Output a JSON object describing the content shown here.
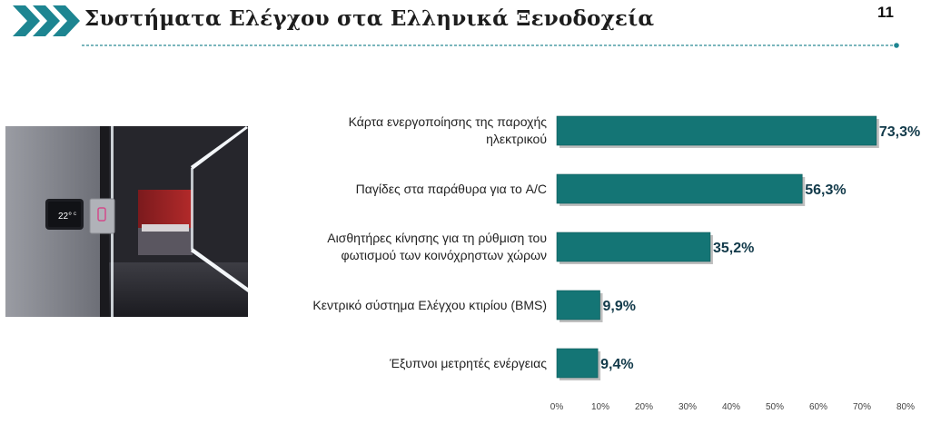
{
  "header": {
    "title": "Συστήματα Ελέγχου στα Ελληνικά Ξενοδοχεία",
    "page_number": "11"
  },
  "colors": {
    "bar": "#147575",
    "bar_shadow": "#8a8a8a",
    "chevron": "#1d8591",
    "divider": "#2a8a94",
    "value_label": "#123a4a"
  },
  "photo": {
    "thermostat_reading": "22°",
    "thermostat_unit": "c"
  },
  "chart_data": {
    "type": "bar",
    "orientation": "horizontal",
    "categories": [
      "Κάρτα ενεργοποίησης της παροχής ηλεκτρικού",
      "Παγίδες στα παράθυρα για το A/C",
      "Αισθητήρες κίνησης για τη ρύθμιση του φωτισμού των κοινόχρηστων χώρων",
      "Κεντρικό σύστημα Ελέγχου κτιρίου (BMS)",
      "Έξυπνοι μετρητές ενέργειας"
    ],
    "category_lines": [
      [
        "Κάρτα ενεργοποίησης της παροχής",
        "ηλεκτρικού"
      ],
      [
        "Παγίδες στα παράθυρα για το A/C"
      ],
      [
        "Αισθητήρες κίνησης για τη ρύθμιση του",
        "φωτισμού των κοινόχρηστων χώρων"
      ],
      [
        "Κεντρικό σύστημα Ελέγχου κτιρίου (BMS)"
      ],
      [
        "Έξυπνοι μετρητές ενέργειας"
      ]
    ],
    "values": [
      73.3,
      56.3,
      35.2,
      9.9,
      9.4
    ],
    "value_labels": [
      "73,3%",
      "56,3%",
      "35,2%",
      "9,9%",
      "9,4%"
    ],
    "xlim": [
      0,
      80
    ],
    "xticks": [
      0,
      10,
      20,
      30,
      40,
      50,
      60,
      70,
      80
    ],
    "xtick_labels": [
      "0%",
      "10%",
      "20%",
      "30%",
      "40%",
      "50%",
      "60%",
      "70%",
      "80%"
    ],
    "grid": false,
    "legend": "none"
  }
}
